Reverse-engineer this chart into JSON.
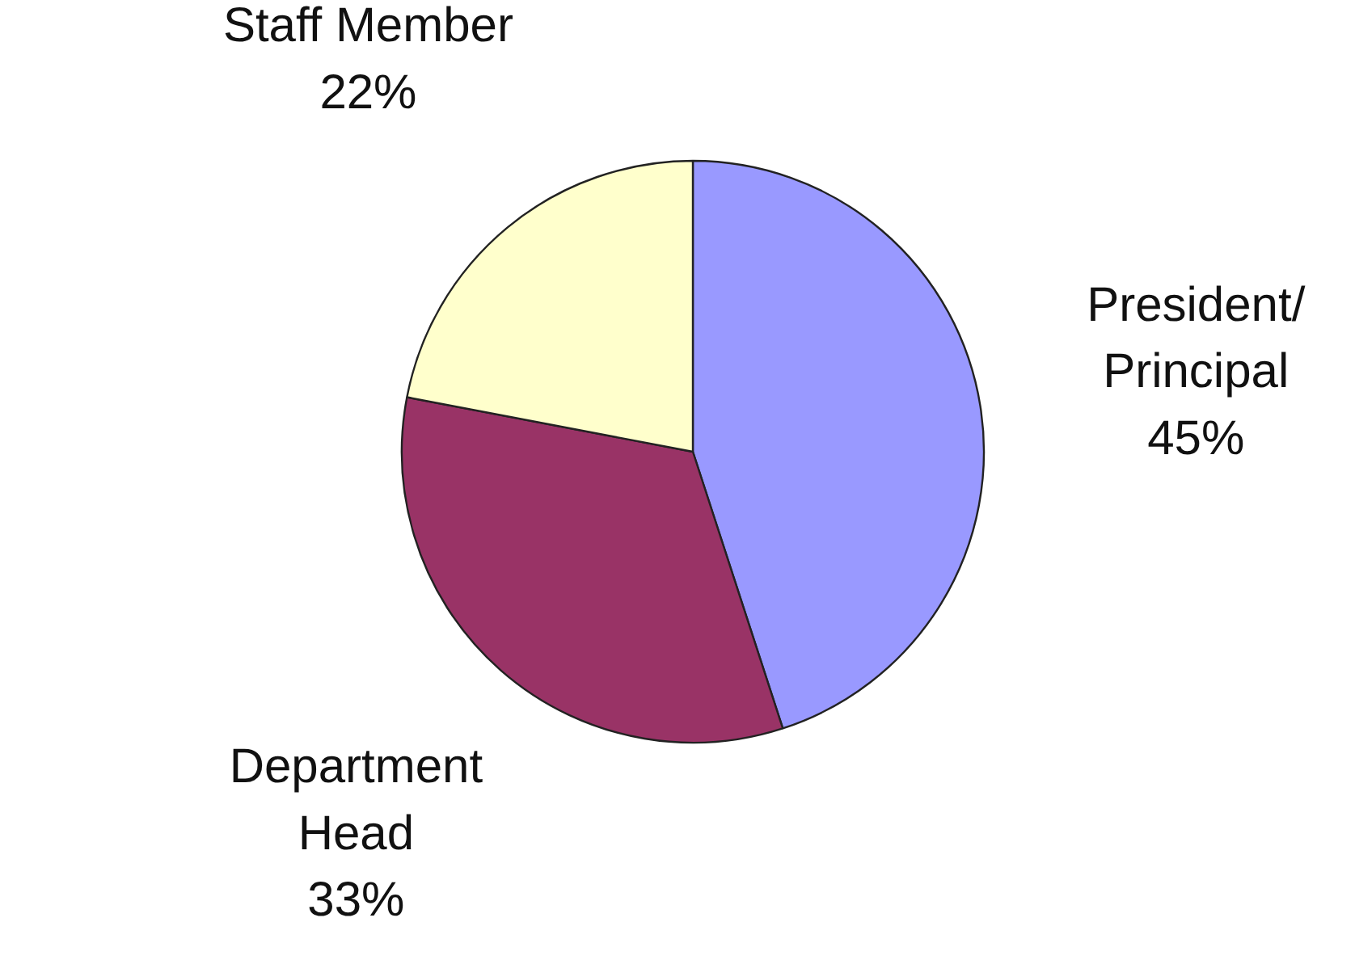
{
  "chart_data": {
    "type": "pie",
    "categories": [
      "President/\nPrincipal",
      "Department\nHead",
      "Staff Member"
    ],
    "values": [
      45,
      33,
      22
    ],
    "colors": [
      "#9999ff",
      "#993366",
      "#ffffcc"
    ],
    "value_labels": [
      "45%",
      "33%",
      "22%"
    ]
  }
}
